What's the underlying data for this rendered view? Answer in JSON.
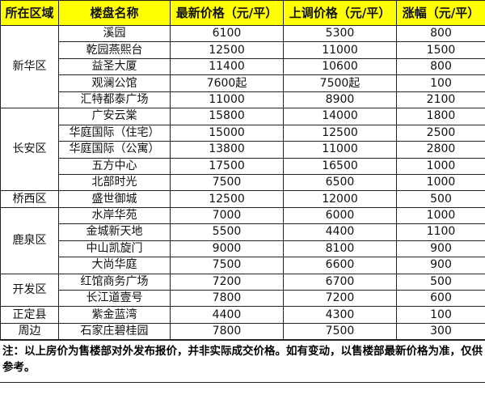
{
  "header": [
    "所在区域",
    "楼盘名称",
    "最新价格（元/平）",
    "上调价格（元/平）",
    "涨幅（元/平）"
  ],
  "groups": [
    {
      "region": "新华区",
      "rows": [
        [
          "溪园",
          "6100",
          "5300",
          "800"
        ],
        [
          "乾园燕熙台",
          "12500",
          "11000",
          "1500"
        ],
        [
          "益圣大厦",
          "11400",
          "10600",
          "800"
        ],
        [
          "观澜公馆",
          "7600起",
          "7500起",
          "100"
        ],
        [
          "汇特都泰广场",
          "11000",
          "8900",
          "2100"
        ]
      ]
    },
    {
      "region": "长安区",
      "rows": [
        [
          "广安云棠",
          "15800",
          "14000",
          "1800"
        ],
        [
          "华庭国际（住宅）",
          "15000",
          "12500",
          "2500"
        ],
        [
          "华庭国际（公寓）",
          "13800",
          "11000",
          "2800"
        ],
        [
          "五方中心",
          "17500",
          "16500",
          "1000"
        ],
        [
          "北部时光",
          "7500",
          "6500",
          "1000"
        ]
      ]
    },
    {
      "region": "桥西区",
      "rows": [
        [
          "盛世御城",
          "12500",
          "12000",
          "500"
        ]
      ]
    },
    {
      "region": "鹿泉区",
      "rows": [
        [
          "水岸华苑",
          "7000",
          "6000",
          "1000"
        ],
        [
          "金城新天地",
          "5500",
          "4400",
          "1100"
        ],
        [
          "中山凯旋门",
          "9000",
          "8100",
          "900"
        ],
        [
          "大尚华庭",
          "7500",
          "6600",
          "900"
        ]
      ]
    },
    {
      "region": "开发区",
      "rows": [
        [
          "红馆商务广场",
          "7200",
          "6700",
          "500"
        ],
        [
          "长江道壹号",
          "7800",
          "7200",
          "600"
        ]
      ]
    },
    {
      "region": "正定县",
      "rows": [
        [
          "紫金蓝湾",
          "4400",
          "4300",
          "100"
        ]
      ]
    },
    {
      "region": "周边",
      "rows": [
        [
          "石家庄碧桂园",
          "7800",
          "7500",
          "300"
        ]
      ]
    }
  ],
  "note": "注：以上房价为售楼部对外发布报价，并非实际成交价格。如有变动，以售楼部最新价格为准，仅供参考。",
  "colors": {
    "header_bg": "#FFFF00",
    "border": "#222222"
  }
}
